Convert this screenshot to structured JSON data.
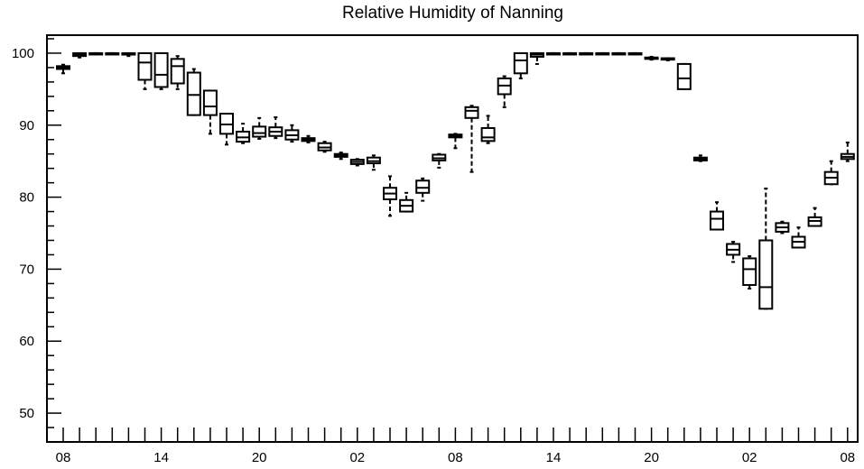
{
  "chart_data": {
    "type": "boxplot",
    "title": "Relative Humidity of Nanning",
    "xlabel": "",
    "ylabel": "",
    "ylim": [
      46,
      102.5
    ],
    "grid": false,
    "y_ticks": [
      50,
      60,
      70,
      80,
      90,
      100
    ],
    "x_ticks": [
      {
        "index": 0,
        "label": "08"
      },
      {
        "index": 6,
        "label": "14"
      },
      {
        "index": 12,
        "label": "20"
      },
      {
        "index": 18,
        "label": "02"
      },
      {
        "index": 24,
        "label": "08"
      },
      {
        "index": 30,
        "label": "14"
      },
      {
        "index": 36,
        "label": "20"
      },
      {
        "index": 42,
        "label": "02"
      },
      {
        "index": 48,
        "label": "08"
      }
    ],
    "series": [
      {
        "boxes": [
          {
            "x": 0,
            "q1": 97.8,
            "median": 98.0,
            "q3": 98.2,
            "whisker_low": 97.2,
            "whisker_high": 98.4
          },
          {
            "x": 1,
            "q1": 99.6,
            "median": 99.8,
            "q3": 100.0,
            "whisker_low": 99.4,
            "whisker_high": 100.0
          },
          {
            "x": 2,
            "q1": 100,
            "median": 100,
            "q3": 100,
            "whisker_low": 100,
            "whisker_high": 100
          },
          {
            "x": 3,
            "q1": 100,
            "median": 100,
            "q3": 100,
            "whisker_low": 100,
            "whisker_high": 100
          },
          {
            "x": 4,
            "q1": 99.8,
            "median": 99.9,
            "q3": 100,
            "whisker_low": 99.6,
            "whisker_high": 100
          },
          {
            "x": 5,
            "q1": 96.3,
            "median": 98.7,
            "q3": 100,
            "whisker_low": 95.0,
            "whisker_high": 100
          },
          {
            "x": 6,
            "q1": 95.3,
            "median": 97.0,
            "q3": 100,
            "whisker_low": 95.0,
            "whisker_high": 100
          },
          {
            "x": 7,
            "q1": 95.8,
            "median": 98.2,
            "q3": 99.2,
            "whisker_low": 95.0,
            "whisker_high": 99.6
          },
          {
            "x": 8,
            "q1": 91.4,
            "median": 94.2,
            "q3": 97.3,
            "whisker_low": 91.4,
            "whisker_high": 97.8
          },
          {
            "x": 9,
            "q1": 91.4,
            "median": 92.6,
            "q3": 94.8,
            "whisker_low": 88.8,
            "whisker_high": 94.8
          },
          {
            "x": 10,
            "q1": 88.8,
            "median": 90.1,
            "q3": 91.6,
            "whisker_low": 87.3,
            "whisker_high": 91.6
          },
          {
            "x": 11,
            "q1": 87.7,
            "median": 88.3,
            "q3": 89.1,
            "whisker_low": 87.5,
            "whisker_high": 90.2
          },
          {
            "x": 12,
            "q1": 88.4,
            "median": 88.9,
            "q3": 89.8,
            "whisker_low": 88.1,
            "whisker_high": 91.0
          },
          {
            "x": 13,
            "q1": 88.5,
            "median": 89.1,
            "q3": 89.7,
            "whisker_low": 88.2,
            "whisker_high": 91.1
          },
          {
            "x": 14,
            "q1": 88.0,
            "median": 88.6,
            "q3": 89.3,
            "whisker_low": 87.7,
            "whisker_high": 90.0
          },
          {
            "x": 15,
            "q1": 87.8,
            "median": 88.0,
            "q3": 88.2,
            "whisker_low": 87.6,
            "whisker_high": 88.5
          },
          {
            "x": 16,
            "q1": 86.5,
            "median": 86.9,
            "q3": 87.5,
            "whisker_low": 86.3,
            "whisker_high": 87.7
          },
          {
            "x": 17,
            "q1": 85.6,
            "median": 85.8,
            "q3": 86.0,
            "whisker_low": 85.3,
            "whisker_high": 86.2
          },
          {
            "x": 18,
            "q1": 84.6,
            "median": 84.9,
            "q3": 85.2,
            "whisker_low": 84.4,
            "whisker_high": 85.3
          },
          {
            "x": 19,
            "q1": 84.7,
            "median": 85.0,
            "q3": 85.5,
            "whisker_low": 83.8,
            "whisker_high": 85.8
          },
          {
            "x": 20,
            "q1": 79.7,
            "median": 80.5,
            "q3": 81.3,
            "whisker_low": 77.4,
            "whisker_high": 82.9
          },
          {
            "x": 21,
            "q1": 78.0,
            "median": 78.8,
            "q3": 79.6,
            "whisker_low": 78.0,
            "whisker_high": 80.6
          },
          {
            "x": 22,
            "q1": 80.6,
            "median": 81.3,
            "q3": 82.3,
            "whisker_low": 79.5,
            "whisker_high": 82.6
          },
          {
            "x": 23,
            "q1": 85.1,
            "median": 85.4,
            "q3": 85.9,
            "whisker_low": 84.1,
            "whisker_high": 86.0
          },
          {
            "x": 24,
            "q1": 88.3,
            "median": 88.5,
            "q3": 88.7,
            "whisker_low": 86.8,
            "whisker_high": 88.8
          },
          {
            "x": 25,
            "q1": 91.0,
            "median": 92.0,
            "q3": 92.5,
            "whisker_low": 83.5,
            "whisker_high": 92.7
          },
          {
            "x": 26,
            "q1": 87.8,
            "median": 88.3,
            "q3": 89.6,
            "whisker_low": 87.5,
            "whisker_high": 91.3
          },
          {
            "x": 27,
            "q1": 94.3,
            "median": 95.5,
            "q3": 96.5,
            "whisker_low": 92.5,
            "whisker_high": 96.8
          },
          {
            "x": 28,
            "q1": 97.2,
            "median": 99.0,
            "q3": 100,
            "whisker_low": 96.5,
            "whisker_high": 100
          },
          {
            "x": 29,
            "q1": 99.5,
            "median": 99.8,
            "q3": 100,
            "whisker_low": 98.5,
            "whisker_high": 100
          },
          {
            "x": 30,
            "q1": 100,
            "median": 100,
            "q3": 100,
            "whisker_low": 100,
            "whisker_high": 100
          },
          {
            "x": 31,
            "q1": 100,
            "median": 100,
            "q3": 100,
            "whisker_low": 100,
            "whisker_high": 100
          },
          {
            "x": 32,
            "q1": 100,
            "median": 100,
            "q3": 100,
            "whisker_low": 100,
            "whisker_high": 100
          },
          {
            "x": 33,
            "q1": 100,
            "median": 100,
            "q3": 100,
            "whisker_low": 100,
            "whisker_high": 100
          },
          {
            "x": 34,
            "q1": 100,
            "median": 100,
            "q3": 100,
            "whisker_low": 100,
            "whisker_high": 100
          },
          {
            "x": 35,
            "q1": 100,
            "median": 100,
            "q3": 100,
            "whisker_low": 100,
            "whisker_high": 100
          },
          {
            "x": 36,
            "q1": 99.2,
            "median": 99.3,
            "q3": 99.4,
            "whisker_low": 99.1,
            "whisker_high": 99.5
          },
          {
            "x": 37,
            "q1": 99.1,
            "median": 99.2,
            "q3": 99.3,
            "whisker_low": 99.0,
            "whisker_high": 99.3
          },
          {
            "x": 38,
            "q1": 95.0,
            "median": 96.5,
            "q3": 98.5,
            "whisker_low": 95.0,
            "whisker_high": 98.5
          },
          {
            "x": 39,
            "q1": 85.1,
            "median": 85.3,
            "q3": 85.5,
            "whisker_low": 85.0,
            "whisker_high": 85.8
          },
          {
            "x": 40,
            "q1": 75.5,
            "median": 77.0,
            "q3": 78.0,
            "whisker_low": 75.5,
            "whisker_high": 79.3
          },
          {
            "x": 41,
            "q1": 72.0,
            "median": 72.7,
            "q3": 73.5,
            "whisker_low": 71.0,
            "whisker_high": 73.8
          },
          {
            "x": 42,
            "q1": 67.8,
            "median": 70.0,
            "q3": 71.5,
            "whisker_low": 67.3,
            "whisker_high": 71.8
          },
          {
            "x": 43,
            "q1": 64.5,
            "median": 67.5,
            "q3": 74.0,
            "whisker_low": 64.5,
            "whisker_high": 81.2
          },
          {
            "x": 44,
            "q1": 75.2,
            "median": 75.8,
            "q3": 76.4,
            "whisker_low": 75.0,
            "whisker_high": 76.6
          },
          {
            "x": 45,
            "q1": 73.0,
            "median": 73.8,
            "q3": 74.5,
            "whisker_low": 73.0,
            "whisker_high": 75.8
          },
          {
            "x": 46,
            "q1": 76.0,
            "median": 76.7,
            "q3": 77.2,
            "whisker_low": 76.0,
            "whisker_high": 78.5
          },
          {
            "x": 47,
            "q1": 81.8,
            "median": 82.7,
            "q3": 83.5,
            "whisker_low": 81.8,
            "whisker_high": 85.0
          },
          {
            "x": 48,
            "q1": 85.3,
            "median": 85.6,
            "q3": 86.0,
            "whisker_low": 85.0,
            "whisker_high": 87.6
          }
        ]
      }
    ]
  }
}
